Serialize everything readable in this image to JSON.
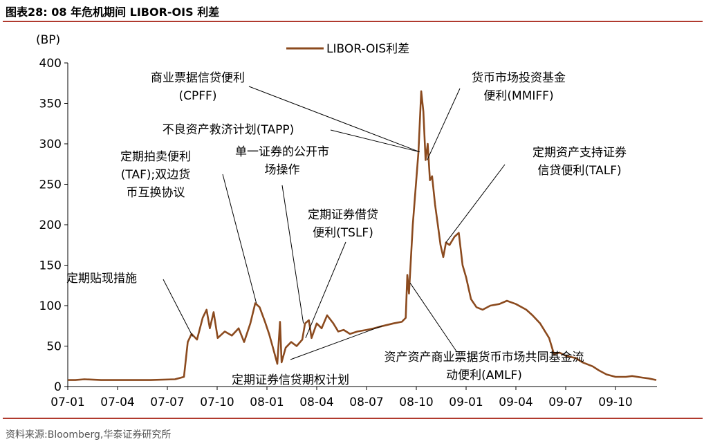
{
  "figure_title": "图表28:   08 年危机期间 LIBOR-OIS 利差",
  "source": "资料来源:Bloomberg,华泰证券研究所",
  "colors": {
    "line": "#8b4a1e",
    "rule": "#b03a2e",
    "axis": "#000000"
  },
  "chart_data": {
    "type": "line",
    "ylabel": "(BP)",
    "ylim": [
      0,
      400
    ],
    "yticks": [
      0,
      50,
      100,
      150,
      200,
      250,
      300,
      350,
      400
    ],
    "xlim": [
      "2007-01",
      "2009-12"
    ],
    "xticks": [
      "07-01",
      "07-04",
      "07-07",
      "07-10",
      "08-01",
      "08-04",
      "08-07",
      "08-10",
      "09-01",
      "09-04",
      "09-07",
      "09-10"
    ],
    "grid": false,
    "legend_position": "top-center",
    "series": [
      {
        "name": "LIBOR-OIS利差",
        "points": [
          [
            "2007-01-01",
            8
          ],
          [
            "2007-01-15",
            8
          ],
          [
            "2007-02-01",
            9
          ],
          [
            "2007-03-01",
            8
          ],
          [
            "2007-04-01",
            8
          ],
          [
            "2007-05-01",
            8
          ],
          [
            "2007-06-01",
            8
          ],
          [
            "2007-07-15",
            9
          ],
          [
            "2007-08-01",
            12
          ],
          [
            "2007-08-08",
            55
          ],
          [
            "2007-08-15",
            65
          ],
          [
            "2007-08-25",
            58
          ],
          [
            "2007-09-05",
            85
          ],
          [
            "2007-09-12",
            95
          ],
          [
            "2007-09-18",
            72
          ],
          [
            "2007-09-25",
            92
          ],
          [
            "2007-10-02",
            60
          ],
          [
            "2007-10-15",
            68
          ],
          [
            "2007-10-28",
            63
          ],
          [
            "2007-11-10",
            72
          ],
          [
            "2007-11-20",
            55
          ],
          [
            "2007-12-01",
            78
          ],
          [
            "2007-12-10",
            103
          ],
          [
            "2007-12-18",
            98
          ],
          [
            "2007-12-28",
            80
          ],
          [
            "2008-01-05",
            65
          ],
          [
            "2008-01-12",
            48
          ],
          [
            "2008-01-20",
            28
          ],
          [
            "2008-01-25",
            80
          ],
          [
            "2008-01-28",
            30
          ],
          [
            "2008-02-05",
            48
          ],
          [
            "2008-02-15",
            55
          ],
          [
            "2008-02-25",
            50
          ],
          [
            "2008-03-05",
            58
          ],
          [
            "2008-03-10",
            78
          ],
          [
            "2008-03-17",
            82
          ],
          [
            "2008-03-22",
            60
          ],
          [
            "2008-04-01",
            78
          ],
          [
            "2008-04-10",
            72
          ],
          [
            "2008-04-20",
            88
          ],
          [
            "2008-05-01",
            78
          ],
          [
            "2008-05-10",
            68
          ],
          [
            "2008-05-20",
            70
          ],
          [
            "2008-06-01",
            65
          ],
          [
            "2008-06-15",
            68
          ],
          [
            "2008-07-01",
            70
          ],
          [
            "2008-07-15",
            72
          ],
          [
            "2008-08-01",
            75
          ],
          [
            "2008-08-20",
            78
          ],
          [
            "2008-09-05",
            80
          ],
          [
            "2008-09-12",
            85
          ],
          [
            "2008-09-15",
            138
          ],
          [
            "2008-09-18",
            115
          ],
          [
            "2008-09-25",
            200
          ],
          [
            "2008-10-05",
            290
          ],
          [
            "2008-10-10",
            365
          ],
          [
            "2008-10-14",
            340
          ],
          [
            "2008-10-18",
            280
          ],
          [
            "2008-10-22",
            300
          ],
          [
            "2008-10-26",
            255
          ],
          [
            "2008-10-30",
            260
          ],
          [
            "2008-11-05",
            225
          ],
          [
            "2008-11-10",
            200
          ],
          [
            "2008-11-15",
            175
          ],
          [
            "2008-11-20",
            160
          ],
          [
            "2008-11-25",
            178
          ],
          [
            "2008-12-01",
            175
          ],
          [
            "2008-12-10",
            185
          ],
          [
            "2008-12-18",
            190
          ],
          [
            "2008-12-25",
            150
          ],
          [
            "2009-01-01",
            135
          ],
          [
            "2009-01-10",
            108
          ],
          [
            "2009-01-20",
            98
          ],
          [
            "2009-02-01",
            95
          ],
          [
            "2009-02-15",
            100
          ],
          [
            "2009-03-01",
            102
          ],
          [
            "2009-03-15",
            106
          ],
          [
            "2009-04-01",
            102
          ],
          [
            "2009-04-20",
            95
          ],
          [
            "2009-05-01",
            88
          ],
          [
            "2009-05-15",
            78
          ],
          [
            "2009-06-01",
            60
          ],
          [
            "2009-06-10",
            40
          ],
          [
            "2009-06-20",
            42
          ],
          [
            "2009-07-01",
            38
          ],
          [
            "2009-07-20",
            35
          ],
          [
            "2009-08-01",
            30
          ],
          [
            "2009-08-20",
            25
          ],
          [
            "2009-09-01",
            20
          ],
          [
            "2009-09-15",
            15
          ],
          [
            "2009-10-01",
            12
          ],
          [
            "2009-10-20",
            12
          ],
          [
            "2009-11-01",
            13
          ],
          [
            "2009-11-20",
            11
          ],
          [
            "2009-12-01",
            10
          ],
          [
            "2009-12-15",
            8
          ]
        ]
      }
    ],
    "annotations": [
      {
        "id": "cpff",
        "lines": [
          "商业票据信贷便利",
          "(CPFF)"
        ],
        "date": "2008-10-07",
        "y": 290
      },
      {
        "id": "mmiff",
        "lines": [
          "货币市场投资基金",
          "便利(MMIFF)"
        ],
        "date": "2008-10-21",
        "y": 280
      },
      {
        "id": "tapp",
        "lines": [
          "不良资产救济计划(TAPP)"
        ],
        "date": "2008-10-07",
        "y": 290
      },
      {
        "id": "spot",
        "lines": [
          "单一证券的公开市",
          "场操作"
        ],
        "date": "2008-03-07",
        "y": 78
      },
      {
        "id": "taf",
        "lines": [
          "定期拍卖便利",
          "(TAF);双边货",
          "币互换协议"
        ],
        "date": "2007-12-12",
        "y": 103
      },
      {
        "id": "talf",
        "lines": [
          "定期资产支持证券",
          "信贷便利(TALF)"
        ],
        "date": "2008-11-25",
        "y": 178
      },
      {
        "id": "tslf",
        "lines": [
          "定期证券借贷",
          "便利(TSLF)"
        ],
        "date": "2008-03-11",
        "y": 60
      },
      {
        "id": "discount",
        "lines": [
          "定期贴现措施"
        ],
        "date": "2007-08-17",
        "y": 62
      },
      {
        "id": "amlf",
        "lines": [
          "资产资产商业票据货币市场共同基金流",
          "动便利(AMLF)"
        ],
        "date": "2008-09-20",
        "y": 128
      },
      {
        "id": "topaf",
        "lines": [
          "定期证券信贷期权计划"
        ],
        "date": "2008-07-30",
        "y": 75
      }
    ]
  }
}
